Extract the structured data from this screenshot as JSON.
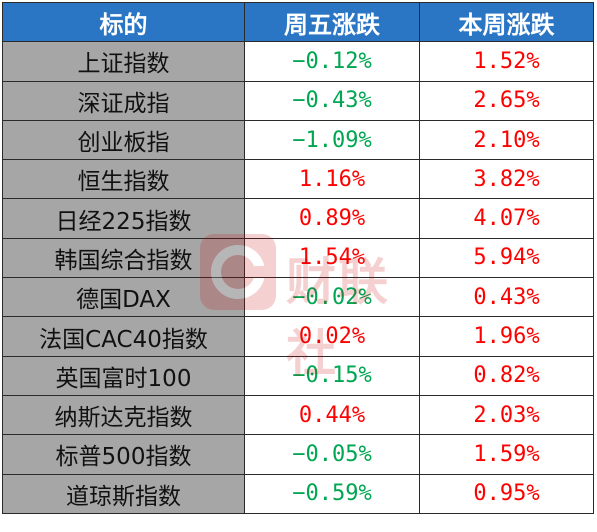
{
  "header": {
    "col_name": "标的",
    "col_friday": "周五涨跌",
    "col_week": "本周涨跌"
  },
  "rows": [
    {
      "name": "上证指数",
      "friday": "−0.12%",
      "friday_dir": "down",
      "week": "1.52%",
      "week_dir": "up"
    },
    {
      "name": "深证成指",
      "friday": "−0.43%",
      "friday_dir": "down",
      "week": "2.65%",
      "week_dir": "up"
    },
    {
      "name": "创业板指",
      "friday": "−1.09%",
      "friday_dir": "down",
      "week": "2.10%",
      "week_dir": "up"
    },
    {
      "name": "恒生指数",
      "friday": "1.16%",
      "friday_dir": "up",
      "week": "3.82%",
      "week_dir": "up"
    },
    {
      "name": "日经225指数",
      "friday": "0.89%",
      "friday_dir": "up",
      "week": "4.07%",
      "week_dir": "up"
    },
    {
      "name": "韩国综合指数",
      "friday": "1.54%",
      "friday_dir": "up",
      "week": "5.94%",
      "week_dir": "up"
    },
    {
      "name": "德国DAX",
      "friday": "−0.02%",
      "friday_dir": "down",
      "week": "0.43%",
      "week_dir": "up"
    },
    {
      "name": "法国CAC40指数",
      "friday": "0.02%",
      "friday_dir": "up",
      "week": "1.96%",
      "week_dir": "up"
    },
    {
      "name": "英国富时100",
      "friday": "−0.15%",
      "friday_dir": "down",
      "week": "0.82%",
      "week_dir": "up"
    },
    {
      "name": "纳斯达克指数",
      "friday": "0.44%",
      "friday_dir": "up",
      "week": "2.03%",
      "week_dir": "up"
    },
    {
      "name": "标普500指数",
      "friday": "−0.05%",
      "friday_dir": "down",
      "week": "1.59%",
      "week_dir": "up"
    },
    {
      "name": "道琼斯指数",
      "friday": "−0.59%",
      "friday_dir": "down",
      "week": "0.95%",
      "week_dir": "up"
    }
  ],
  "watermark": {
    "text": "财联社",
    "logo_icon": "cls-logo-icon"
  },
  "colors": {
    "header_bg": "#2a75c4",
    "name_bg": "#a6a6a6",
    "up": "#ff0000",
    "down": "#00a651"
  }
}
